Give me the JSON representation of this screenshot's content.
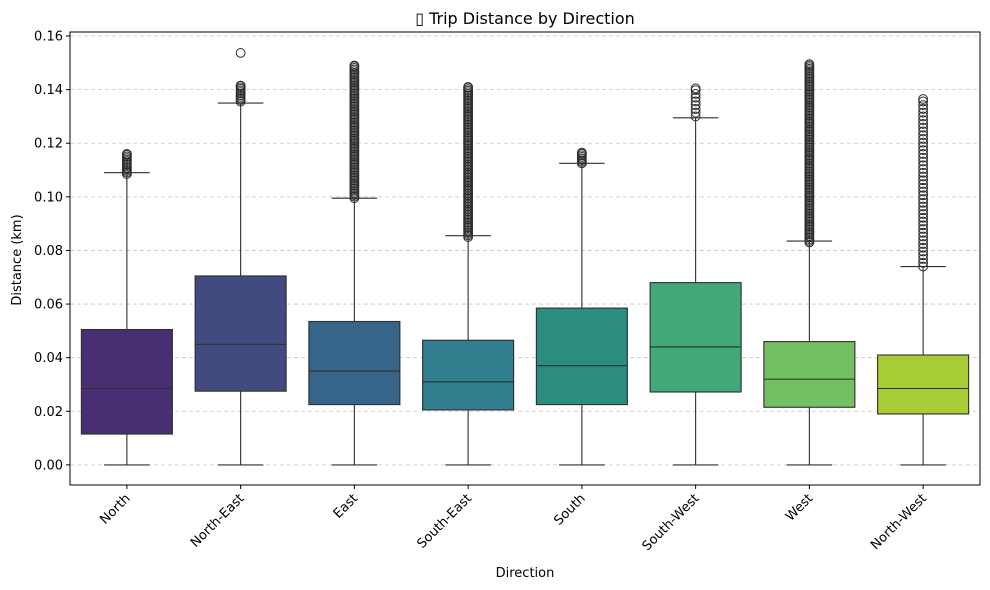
{
  "chart_data": {
    "type": "box",
    "title": "▯ Trip Distance by Direction",
    "xlabel": "Direction",
    "ylabel": "Distance (km)",
    "ylim": [
      -0.0075,
      0.1615
    ],
    "yticks": [
      "0.00",
      "0.02",
      "0.04",
      "0.06",
      "0.08",
      "0.10",
      "0.12",
      "0.14",
      "0.16"
    ],
    "grid": "y-dashed",
    "palette": "viridis",
    "categories": [
      "North",
      "North-East",
      "East",
      "South-East",
      "South",
      "South-West",
      "West",
      "North-West"
    ],
    "colors": [
      "#482e72",
      "#414b80",
      "#37658a",
      "#2f7d8d",
      "#2a8d7d",
      "#41a878",
      "#72c062",
      "#a7cc35"
    ],
    "boxes": [
      {
        "label": "North",
        "min": 0.0,
        "q1": 0.0115,
        "median": 0.0285,
        "q3": 0.0505,
        "whisker_high": 0.109,
        "outliers_from": 0.1085,
        "outliers_to": 0.116,
        "outlier_style": "dense"
      },
      {
        "label": "North-East",
        "min": 0.0,
        "q1": 0.0275,
        "median": 0.045,
        "q3": 0.0705,
        "whisker_high": 0.135,
        "outliers_from": 0.1355,
        "outliers_to": 0.1415,
        "outlier_style": "dense",
        "extra_outliers": [
          0.1537
        ]
      },
      {
        "label": "East",
        "min": 0.0,
        "q1": 0.0225,
        "median": 0.035,
        "q3": 0.0535,
        "whisker_high": 0.0995,
        "outliers_from": 0.0995,
        "outliers_to": 0.149,
        "outlier_style": "dense"
      },
      {
        "label": "South-East",
        "min": 0.0,
        "q1": 0.0205,
        "median": 0.031,
        "q3": 0.0465,
        "whisker_high": 0.0855,
        "outliers_from": 0.085,
        "outliers_to": 0.141,
        "outlier_style": "dense"
      },
      {
        "label": "South",
        "min": 0.0,
        "q1": 0.0225,
        "median": 0.037,
        "q3": 0.0585,
        "whisker_high": 0.1125,
        "outliers_from": 0.1125,
        "outliers_to": 0.1165,
        "outlier_style": "dense"
      },
      {
        "label": "South-West",
        "min": 0.0,
        "q1": 0.0272,
        "median": 0.044,
        "q3": 0.068,
        "whisker_high": 0.1295,
        "outliers_from": 0.13,
        "outliers_to": 0.1405,
        "outlier_style": "sparse"
      },
      {
        "label": "West",
        "min": 0.0,
        "q1": 0.0215,
        "median": 0.032,
        "q3": 0.046,
        "whisker_high": 0.0835,
        "outliers_from": 0.083,
        "outliers_to": 0.1495,
        "outlier_style": "dense"
      },
      {
        "label": "North-West",
        "min": 0.0,
        "q1": 0.019,
        "median": 0.0285,
        "q3": 0.041,
        "whisker_high": 0.074,
        "outliers_from": 0.074,
        "outliers_to": 0.1365,
        "outlier_style": "sparse"
      }
    ]
  }
}
